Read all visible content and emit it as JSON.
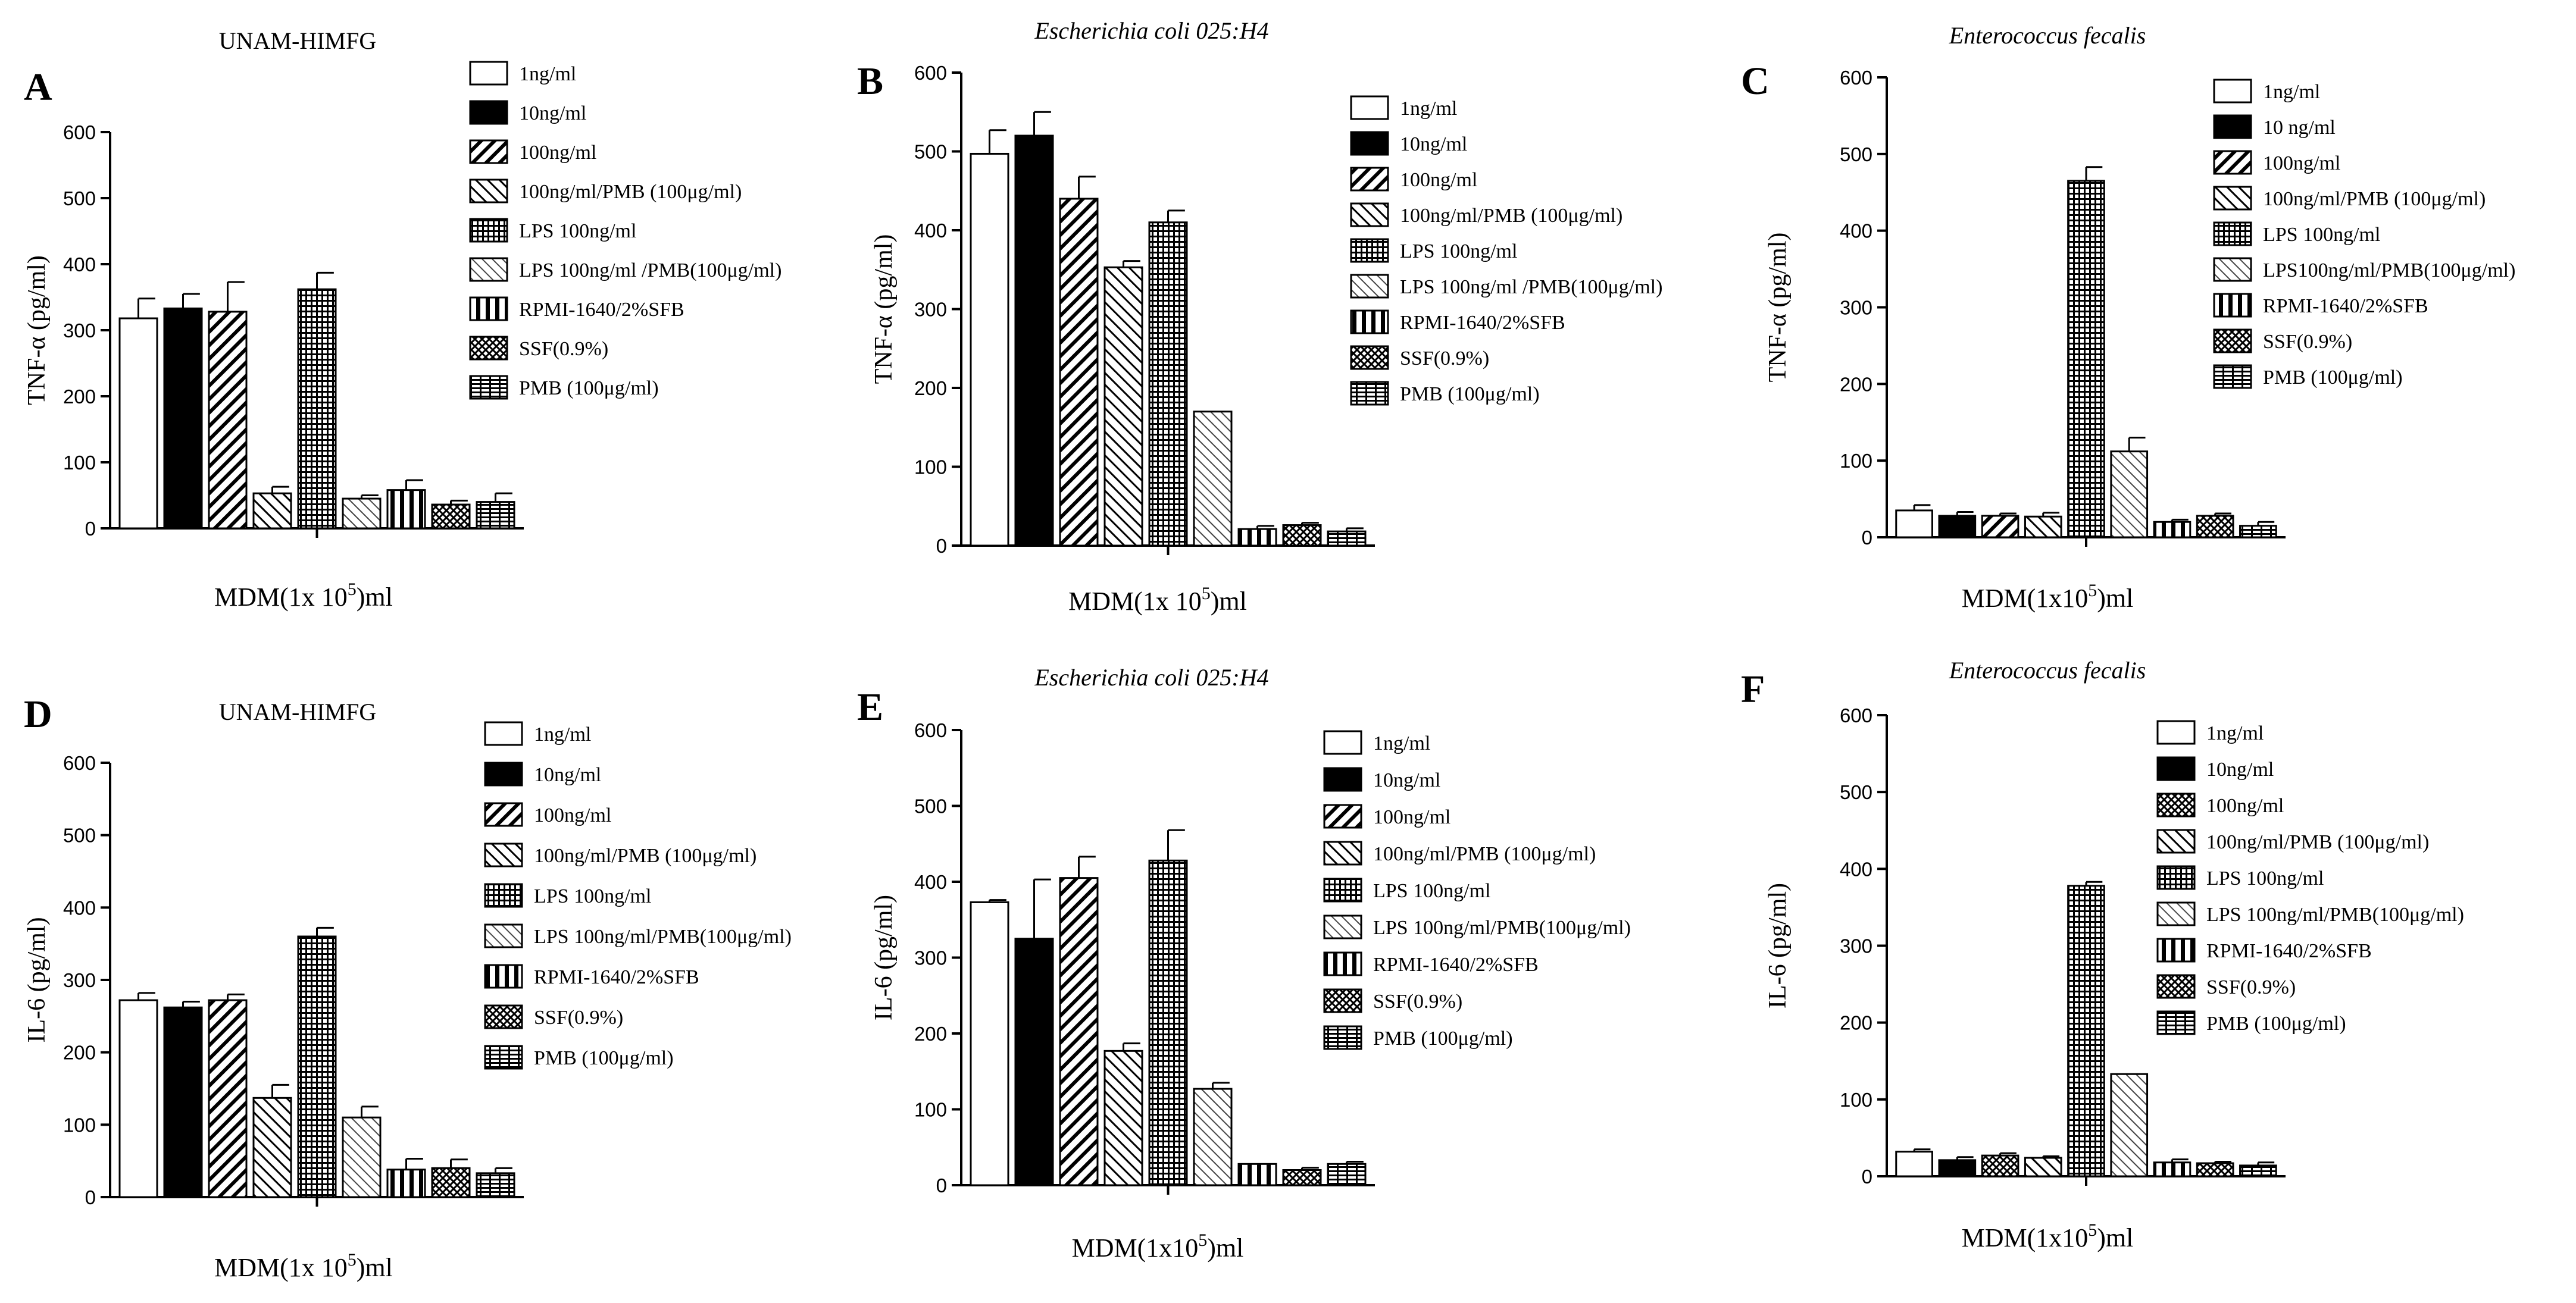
{
  "chart_data": [
    {
      "type": "bar",
      "panel_label": "A",
      "title": "UNAM-HIMFG",
      "title_italic": false,
      "ylabel": "TNF-α (pg/ml)",
      "xlabel_main": "MDM(1x 10",
      "xlabel_sup": "5",
      "xlabel_end": ")ml",
      "ylim": [
        0,
        600
      ],
      "yticks": [
        "0",
        "100",
        "200",
        "300",
        "400",
        "500",
        "600"
      ],
      "legend_position": "right",
      "series": [
        {
          "name": "1ng/ml",
          "pattern": "white",
          "value": 318,
          "error": 30
        },
        {
          "name": "10ng/ml",
          "pattern": "black",
          "value": 333,
          "error": 22
        },
        {
          "name": "100ng/ml",
          "pattern": "diag-dense",
          "value": 328,
          "error": 45
        },
        {
          "name": "100ng/ml/PMB (100μg/ml)",
          "pattern": "diag-back",
          "value": 53,
          "error": 10
        },
        {
          "name": "LPS 100ng/ml",
          "pattern": "grid",
          "value": 362,
          "error": 25
        },
        {
          "name": "LPS 100ng/ml /PMB(100μg/ml)",
          "pattern": "diag-thin",
          "value": 45,
          "error": 5
        },
        {
          "name": "RPMI-1640/2%SFB",
          "pattern": "vstripe",
          "value": 58,
          "error": 15
        },
        {
          "name": "SSF(0.9%)",
          "pattern": "crosshatch",
          "value": 36,
          "error": 6
        },
        {
          "name": "PMB (100μg/ml)",
          "pattern": "brick",
          "value": 40,
          "error": 13
        }
      ]
    },
    {
      "type": "bar",
      "panel_label": "B",
      "title": "Escherichia coli 025:H4",
      "title_italic": true,
      "ylabel": "TNF-α (pg/ml)",
      "xlabel_main": "MDM(1x 10",
      "xlabel_sup": "5",
      "xlabel_end": ")ml",
      "ylim": [
        0,
        600
      ],
      "yticks": [
        "0",
        "100",
        "200",
        "300",
        "400",
        "500",
        "600"
      ],
      "legend_position": "right",
      "series": [
        {
          "name": "1ng/ml",
          "pattern": "white",
          "value": 497,
          "error": 30
        },
        {
          "name": "10ng/ml",
          "pattern": "black",
          "value": 520,
          "error": 30
        },
        {
          "name": "100ng/ml",
          "pattern": "diag-dense",
          "value": 440,
          "error": 28
        },
        {
          "name": "100ng/ml/PMB (100μg/ml)",
          "pattern": "diag-back",
          "value": 353,
          "error": 8
        },
        {
          "name": "LPS 100ng/ml",
          "pattern": "grid",
          "value": 410,
          "error": 15
        },
        {
          "name": "LPS 100ng/ml /PMB(100μg/ml)",
          "pattern": "diag-thin",
          "value": 170,
          "error": 0
        },
        {
          "name": "RPMI-1640/2%SFB",
          "pattern": "vstripe",
          "value": 21,
          "error": 4
        },
        {
          "name": "SSF(0.9%)",
          "pattern": "crosshatch",
          "value": 26,
          "error": 3
        },
        {
          "name": "PMB (100μg/ml)",
          "pattern": "brick",
          "value": 18,
          "error": 4
        }
      ]
    },
    {
      "type": "bar",
      "panel_label": "C",
      "title": "Enterococcus fecalis",
      "title_italic": true,
      "ylabel": "TNF-α (pg/ml)",
      "xlabel_main": "MDM(1x10",
      "xlabel_sup": "5",
      "xlabel_end": ")ml",
      "ylim": [
        0,
        600
      ],
      "yticks": [
        "0",
        "100",
        "200",
        "300",
        "400",
        "500",
        "600"
      ],
      "legend_position": "right",
      "series": [
        {
          "name": "1ng/ml",
          "pattern": "white",
          "value": 35,
          "error": 7
        },
        {
          "name": "10 ng/ml",
          "pattern": "black",
          "value": 28,
          "error": 5
        },
        {
          "name": "100ng/ml",
          "pattern": "diag-dense",
          "value": 28,
          "error": 3
        },
        {
          "name": "100ng/ml/PMB (100μg/ml)",
          "pattern": "diag-back",
          "value": 27,
          "error": 5
        },
        {
          "name": "LPS 100ng/ml",
          "pattern": "grid",
          "value": 465,
          "error": 18
        },
        {
          "name": "LPS100ng/ml/PMB(100μg/ml)",
          "pattern": "diag-thin",
          "value": 112,
          "error": 18
        },
        {
          "name": "RPMI-1640/2%SFB",
          "pattern": "vstripe",
          "value": 20,
          "error": 3
        },
        {
          "name": "SSF(0.9%)",
          "pattern": "crosshatch",
          "value": 28,
          "error": 3
        },
        {
          "name": "PMB (100μg/ml)",
          "pattern": "brick",
          "value": 15,
          "error": 5
        }
      ]
    },
    {
      "type": "bar",
      "panel_label": "D",
      "title": "UNAM-HIMFG",
      "title_italic": false,
      "ylabel": "IL-6 (pg/ml)",
      "xlabel_main": "MDM(1x 10",
      "xlabel_sup": "5",
      "xlabel_end": ")ml",
      "ylim": [
        0,
        600
      ],
      "yticks": [
        "0",
        "100",
        "200",
        "300",
        "400",
        "500",
        "600"
      ],
      "legend_position": "right",
      "series": [
        {
          "name": "1ng/ml",
          "pattern": "white",
          "value": 272,
          "error": 10
        },
        {
          "name": "10ng/ml",
          "pattern": "black",
          "value": 262,
          "error": 8
        },
        {
          "name": "100ng/ml",
          "pattern": "diag-dense",
          "value": 272,
          "error": 8
        },
        {
          "name": "100ng/ml/PMB (100μg/ml)",
          "pattern": "diag-back",
          "value": 137,
          "error": 18
        },
        {
          "name": "LPS 100ng/ml",
          "pattern": "grid",
          "value": 360,
          "error": 12
        },
        {
          "name": "LPS 100ng/ml/PMB(100μg/ml)",
          "pattern": "diag-thin",
          "value": 110,
          "error": 15
        },
        {
          "name": "RPMI-1640/2%SFB",
          "pattern": "vstripe",
          "value": 38,
          "error": 15
        },
        {
          "name": "SSF(0.9%)",
          "pattern": "crosshatch",
          "value": 40,
          "error": 12
        },
        {
          "name": "PMB (100μg/ml)",
          "pattern": "brick",
          "value": 33,
          "error": 7
        }
      ]
    },
    {
      "type": "bar",
      "panel_label": "E",
      "title": "Escherichia coli 025:H4",
      "title_italic": true,
      "ylabel": "IL-6 (pg/ml)",
      "xlabel_main": "MDM(1x10",
      "xlabel_sup": "5",
      "xlabel_end": ")ml",
      "ylim": [
        0,
        600
      ],
      "yticks": [
        "0",
        "100",
        "200",
        "300",
        "400",
        "500",
        "600"
      ],
      "legend_position": "right",
      "series": [
        {
          "name": "1ng/ml",
          "pattern": "white",
          "value": 373,
          "error": 3
        },
        {
          "name": "10ng/ml",
          "pattern": "black",
          "value": 325,
          "error": 78
        },
        {
          "name": "100ng/ml",
          "pattern": "diag-dense",
          "value": 405,
          "error": 28
        },
        {
          "name": "100ng/ml/PMB (100μg/ml)",
          "pattern": "diag-back",
          "value": 177,
          "error": 10
        },
        {
          "name": "LPS 100ng/ml",
          "pattern": "grid",
          "value": 428,
          "error": 40
        },
        {
          "name": "LPS 100ng/ml/PMB(100μg/ml)",
          "pattern": "diag-thin",
          "value": 127,
          "error": 8
        },
        {
          "name": "RPMI-1640/2%SFB",
          "pattern": "vstripe",
          "value": 28,
          "error": 0
        },
        {
          "name": "SSF(0.9%)",
          "pattern": "crosshatch",
          "value": 20,
          "error": 3
        },
        {
          "name": "PMB (100μg/ml)",
          "pattern": "brick",
          "value": 28,
          "error": 3
        }
      ]
    },
    {
      "type": "bar",
      "panel_label": "F",
      "title": "Enterococcus fecalis",
      "title_italic": true,
      "ylabel": "IL-6 (pg/ml)",
      "xlabel_main": "MDM(1x10",
      "xlabel_sup": "5",
      "xlabel_end": ")ml",
      "ylim": [
        0,
        600
      ],
      "yticks": [
        "0",
        "100",
        "200",
        "300",
        "400",
        "500",
        "600"
      ],
      "legend_position": "right",
      "series": [
        {
          "name": "1ng/ml",
          "pattern": "white",
          "value": 32,
          "error": 3
        },
        {
          "name": "10ng/ml",
          "pattern": "black",
          "value": 21,
          "error": 4
        },
        {
          "name": "100ng/ml",
          "pattern": "crosshatch",
          "value": 27,
          "error": 3
        },
        {
          "name": "100ng/ml/PMB (100μg/ml)",
          "pattern": "diag-back",
          "value": 24,
          "error": 2
        },
        {
          "name": "LPS 100ng/ml",
          "pattern": "grid",
          "value": 378,
          "error": 5
        },
        {
          "name": "LPS 100ng/ml/PMB(100μg/ml)",
          "pattern": "diag-thin",
          "value": 133,
          "error": 0
        },
        {
          "name": "RPMI-1640/2%SFB",
          "pattern": "vstripe",
          "value": 18,
          "error": 4
        },
        {
          "name": "SSF(0.9%)",
          "pattern": "crosshatch",
          "value": 17,
          "error": 2
        },
        {
          "name": "PMB (100μg/ml)",
          "pattern": "brick",
          "value": 14,
          "error": 4
        }
      ]
    }
  ]
}
